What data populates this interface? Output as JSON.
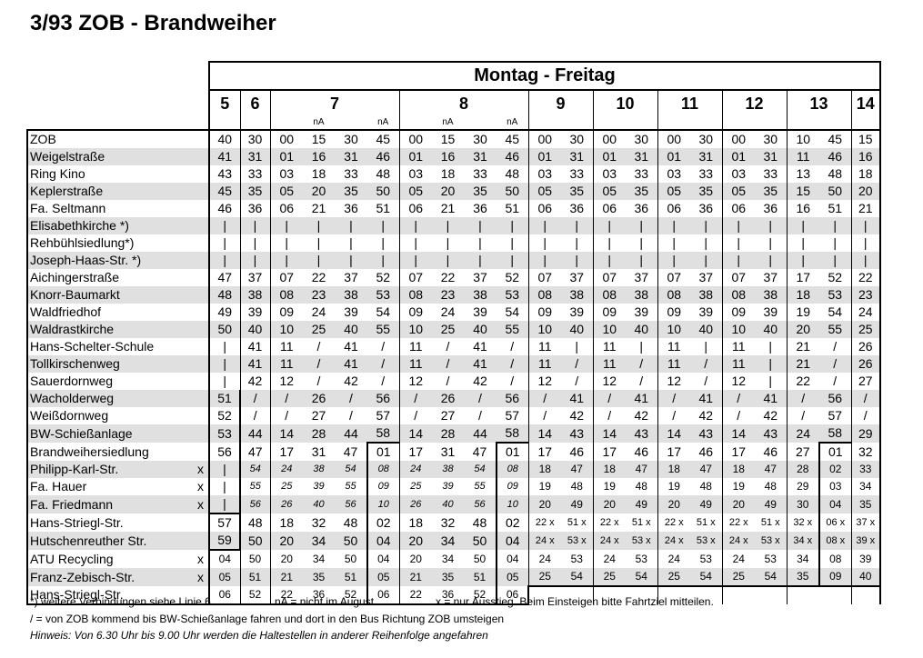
{
  "title": "3/93 ZOB - Brandweiher",
  "days": "Montag - Freitag",
  "hours": [
    {
      "label": "5",
      "span": 1
    },
    {
      "label": "6",
      "span": 1
    },
    {
      "label": "7",
      "span": 4
    },
    {
      "label": "8",
      "span": 4
    },
    {
      "label": "9",
      "span": 2
    },
    {
      "label": "10",
      "span": 2
    },
    {
      "label": "11",
      "span": 2
    },
    {
      "label": "12",
      "span": 2
    },
    {
      "label": "13",
      "span": 2
    },
    {
      "label": "14",
      "span": 1
    }
  ],
  "na_marks": [
    "",
    "",
    "",
    "nA",
    "",
    "nA",
    "",
    "nA",
    "",
    "nA",
    "",
    "",
    "",
    "",
    "",
    "",
    "",
    "",
    "",
    "",
    ""
  ],
  "stops": [
    {
      "name": "ZOB",
      "x": "",
      "times": [
        "40",
        "30",
        "00",
        "15",
        "30",
        "45",
        "00",
        "15",
        "30",
        "45",
        "00",
        "30",
        "00",
        "30",
        "00",
        "30",
        "00",
        "30",
        "10",
        "45",
        "15"
      ]
    },
    {
      "name": "Weigelstraße",
      "x": "",
      "times": [
        "41",
        "31",
        "01",
        "16",
        "31",
        "46",
        "01",
        "16",
        "31",
        "46",
        "01",
        "31",
        "01",
        "31",
        "01",
        "31",
        "01",
        "31",
        "11",
        "46",
        "16"
      ]
    },
    {
      "name": "Ring Kino",
      "x": "",
      "times": [
        "43",
        "33",
        "03",
        "18",
        "33",
        "48",
        "03",
        "18",
        "33",
        "48",
        "03",
        "33",
        "03",
        "33",
        "03",
        "33",
        "03",
        "33",
        "13",
        "48",
        "18"
      ]
    },
    {
      "name": "Keplerstraße",
      "x": "",
      "times": [
        "45",
        "35",
        "05",
        "20",
        "35",
        "50",
        "05",
        "20",
        "35",
        "50",
        "05",
        "35",
        "05",
        "35",
        "05",
        "35",
        "05",
        "35",
        "15",
        "50",
        "20"
      ]
    },
    {
      "name": "Fa. Seltmann",
      "x": "",
      "times": [
        "46",
        "36",
        "06",
        "21",
        "36",
        "51",
        "06",
        "21",
        "36",
        "51",
        "06",
        "36",
        "06",
        "36",
        "06",
        "36",
        "06",
        "36",
        "16",
        "51",
        "21"
      ]
    },
    {
      "name": "Elisabethkirche *)",
      "x": "",
      "times": [
        "|",
        "|",
        "|",
        "|",
        "|",
        "|",
        "|",
        "|",
        "|",
        "|",
        "|",
        "|",
        "|",
        "|",
        "|",
        "|",
        "|",
        "|",
        "|",
        "|",
        "|"
      ]
    },
    {
      "name": "Rehbühlsiedlung*)",
      "x": "",
      "times": [
        "|",
        "|",
        "|",
        "|",
        "|",
        "|",
        "|",
        "|",
        "|",
        "|",
        "|",
        "|",
        "|",
        "|",
        "|",
        "|",
        "|",
        "|",
        "|",
        "|",
        "|"
      ]
    },
    {
      "name": "Joseph-Haas-Str. *)",
      "x": "",
      "times": [
        "|",
        "|",
        "|",
        "|",
        "|",
        "|",
        "|",
        "|",
        "|",
        "|",
        "|",
        "|",
        "|",
        "|",
        "|",
        "|",
        "|",
        "|",
        "|",
        "|",
        "|"
      ]
    },
    {
      "name": "Aichingerstraße",
      "x": "",
      "times": [
        "47",
        "37",
        "07",
        "22",
        "37",
        "52",
        "07",
        "22",
        "37",
        "52",
        "07",
        "37",
        "07",
        "37",
        "07",
        "37",
        "07",
        "37",
        "17",
        "52",
        "22"
      ]
    },
    {
      "name": "Knorr-Baumarkt",
      "x": "",
      "times": [
        "48",
        "38",
        "08",
        "23",
        "38",
        "53",
        "08",
        "23",
        "38",
        "53",
        "08",
        "38",
        "08",
        "38",
        "08",
        "38",
        "08",
        "38",
        "18",
        "53",
        "23"
      ]
    },
    {
      "name": "Waldfriedhof",
      "x": "",
      "times": [
        "49",
        "39",
        "09",
        "24",
        "39",
        "54",
        "09",
        "24",
        "39",
        "54",
        "09",
        "39",
        "09",
        "39",
        "09",
        "39",
        "09",
        "39",
        "19",
        "54",
        "24"
      ]
    },
    {
      "name": "Waldrastkirche",
      "x": "",
      "times": [
        "50",
        "40",
        "10",
        "25",
        "40",
        "55",
        "10",
        "25",
        "40",
        "55",
        "10",
        "40",
        "10",
        "40",
        "10",
        "40",
        "10",
        "40",
        "20",
        "55",
        "25"
      ]
    },
    {
      "name": "Hans-Schelter-Schule",
      "x": "",
      "times": [
        "|",
        "41",
        "11",
        "/",
        "41",
        "/",
        "11",
        "/",
        "41",
        "/",
        "11",
        "|",
        "11",
        "|",
        "11",
        "|",
        "11",
        "|",
        "21",
        "/",
        "26"
      ]
    },
    {
      "name": "Tollkirschenweg",
      "x": "",
      "times": [
        "|",
        "41",
        "11",
        "/",
        "41",
        "/",
        "11",
        "/",
        "41",
        "/",
        "11",
        "/",
        "11",
        "/",
        "11",
        "/",
        "11",
        "|",
        "21",
        "/",
        "26"
      ]
    },
    {
      "name": "Sauerdornweg",
      "x": "",
      "times": [
        "|",
        "42",
        "12",
        "/",
        "42",
        "/",
        "12",
        "/",
        "42",
        "/",
        "12",
        "/",
        "12",
        "/",
        "12",
        "/",
        "12",
        "|",
        "22",
        "/",
        "27"
      ]
    },
    {
      "name": "Wacholderweg",
      "x": "",
      "times": [
        "51",
        "/",
        "/",
        "26",
        "/",
        "56",
        "/",
        "26",
        "/",
        "56",
        "/",
        "41",
        "/",
        "41",
        "/",
        "41",
        "/",
        "41",
        "/",
        "56",
        "/"
      ]
    },
    {
      "name": "Weißdornweg",
      "x": "",
      "times": [
        "52",
        "/",
        "/",
        "27",
        "/",
        "57",
        "/",
        "27",
        "/",
        "57",
        "/",
        "42",
        "/",
        "42",
        "/",
        "42",
        "/",
        "42",
        "/",
        "57",
        "/"
      ]
    },
    {
      "name": "BW-Schießanlage",
      "x": "",
      "times": [
        "53",
        "44",
        "14",
        "28",
        "44",
        "58",
        "14",
        "28",
        "44",
        "58",
        "14",
        "43",
        "14",
        "43",
        "14",
        "43",
        "14",
        "43",
        "24",
        "58",
        "29"
      ]
    },
    {
      "name": "Brandweihersiedlung",
      "x": "",
      "times": [
        "56",
        "47",
        "17",
        "31",
        "47",
        "01",
        "17",
        "31",
        "47",
        "01",
        "17",
        "46",
        "17",
        "46",
        "17",
        "46",
        "17",
        "46",
        "27",
        "01",
        "32"
      ]
    },
    {
      "name": "Philipp-Karl-Str.",
      "x": "x",
      "times": [
        "|",
        "54",
        "24",
        "38",
        "54",
        "08",
        "24",
        "38",
        "54",
        "08",
        "18",
        "47",
        "18",
        "47",
        "18",
        "47",
        "18",
        "47",
        "28",
        "02",
        "33"
      ]
    },
    {
      "name": "Fa. Hauer",
      "x": "x",
      "times": [
        "|",
        "55",
        "25",
        "39",
        "55",
        "09",
        "25",
        "39",
        "55",
        "09",
        "19",
        "48",
        "19",
        "48",
        "19",
        "48",
        "19",
        "48",
        "29",
        "03",
        "34"
      ]
    },
    {
      "name": "Fa. Friedmann",
      "x": "x",
      "times": [
        "|",
        "56",
        "26",
        "40",
        "56",
        "10",
        "26",
        "40",
        "56",
        "10",
        "20",
        "49",
        "20",
        "49",
        "20",
        "49",
        "20",
        "49",
        "30",
        "04",
        "35"
      ]
    },
    {
      "name": "Hans-Striegl-Str.",
      "x": "",
      "times": [
        "57",
        "48",
        "18",
        "32",
        "48",
        "02",
        "18",
        "32",
        "48",
        "02",
        "22 x",
        "51 x",
        "22 x",
        "51 x",
        "22 x",
        "51 x",
        "22 x",
        "51 x",
        "32 x",
        "06 x",
        "37 x"
      ]
    },
    {
      "name": "Hutschenreuther Str.",
      "x": "",
      "times": [
        "59",
        "50",
        "20",
        "34",
        "50",
        "04",
        "20",
        "34",
        "50",
        "04",
        "24 x",
        "53 x",
        "24 x",
        "53 x",
        "24 x",
        "53 x",
        "24 x",
        "53 x",
        "34 x",
        "08 x",
        "39 x"
      ]
    },
    {
      "name": "ATU Recycling",
      "x": "x",
      "times": [
        "04",
        "50",
        "20",
        "34",
        "50",
        "04",
        "20",
        "34",
        "50",
        "04",
        "24",
        "53",
        "24",
        "53",
        "24",
        "53",
        "24",
        "53",
        "34",
        "08",
        "39"
      ]
    },
    {
      "name": "Franz-Zebisch-Str.",
      "x": "x",
      "times": [
        "05",
        "51",
        "21",
        "35",
        "51",
        "05",
        "21",
        "35",
        "51",
        "05",
        "25",
        "54",
        "25",
        "54",
        "25",
        "54",
        "25",
        "54",
        "35",
        "09",
        "40"
      ]
    },
    {
      "name": "Hans-Striegl-Str.",
      "x": "",
      "times": [
        "06",
        "52",
        "22",
        "36",
        "52",
        "06",
        "22",
        "36",
        "52",
        "06",
        "",
        "",
        "",
        "",
        "",
        "",
        "",
        "",
        "",
        "",
        ""
      ]
    }
  ],
  "footnotes": {
    "line1_a": "*) weitere Verbindungen siehe Linie 6",
    "line1_b": "nA = nicht im August",
    "line1_c": "x = nur Ausstieg. Beim Einsteigen bitte Fahrtziel mitteilen.",
    "line2": "/ = von ZOB kommend bis BW-Schießanlage fahren und dort in den Bus Richtung ZOB umsteigen",
    "line3": "Hinweis: Von 6.30 Uhr bis 9.00 Uhr werden die Haltestellen in anderer Reihenfolge angefahren"
  }
}
